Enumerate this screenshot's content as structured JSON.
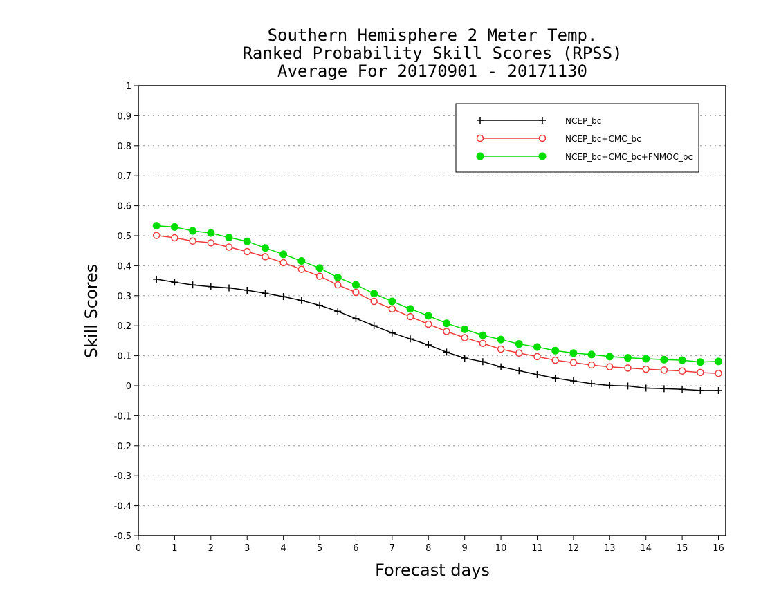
{
  "chart_data": {
    "type": "line",
    "title_lines": [
      "Southern Hemisphere 2 Meter Temp.",
      "Ranked Probability Skill Scores (RPSS)",
      "Average For 20170901 - 20171130"
    ],
    "xlabel": "Forecast days",
    "ylabel": "Skill Scores",
    "xlim": [
      0,
      16.2
    ],
    "ylim": [
      -0.5,
      1
    ],
    "xticks": [
      "0",
      "1",
      "2",
      "3",
      "4",
      "5",
      "6",
      "7",
      "8",
      "9",
      "10",
      "11",
      "12",
      "13",
      "14",
      "15",
      "16"
    ],
    "yticks": [
      "-0.5",
      "-0.4",
      "-0.3",
      "-0.2",
      "-0.1",
      "0",
      "0.1",
      "0.2",
      "0.3",
      "0.4",
      "0.5",
      "0.6",
      "0.7",
      "0.8",
      "0.9",
      "1"
    ],
    "grid": "horizontal dotted",
    "legend_position": "top-right",
    "x": [
      0.5,
      1,
      1.5,
      2,
      2.5,
      3,
      3.5,
      4,
      4.5,
      5,
      5.5,
      6,
      6.5,
      7,
      7.5,
      8,
      8.5,
      9,
      9.5,
      10,
      10.5,
      11,
      11.5,
      12,
      12.5,
      13,
      13.5,
      14,
      14.5,
      15,
      15.5,
      16
    ],
    "series": [
      {
        "name": "NCEP_bc",
        "color": "#000000",
        "marker": "plus",
        "values": [
          0.355,
          0.345,
          0.336,
          0.33,
          0.326,
          0.318,
          0.308,
          0.297,
          0.284,
          0.268,
          0.248,
          0.224,
          0.2,
          0.176,
          0.156,
          0.136,
          0.112,
          0.092,
          0.08,
          0.063,
          0.05,
          0.037,
          0.025,
          0.016,
          0.007,
          0.001,
          -0.001,
          -0.008,
          -0.01,
          -0.012,
          -0.016,
          -0.016
        ]
      },
      {
        "name": "NCEP_bc+CMC_bc",
        "color": "#ee3b3b",
        "marker": "open-circle",
        "values": [
          0.501,
          0.493,
          0.482,
          0.476,
          0.462,
          0.447,
          0.43,
          0.41,
          0.388,
          0.365,
          0.336,
          0.311,
          0.281,
          0.256,
          0.23,
          0.205,
          0.181,
          0.16,
          0.141,
          0.122,
          0.109,
          0.097,
          0.085,
          0.077,
          0.069,
          0.063,
          0.059,
          0.055,
          0.052,
          0.049,
          0.044,
          0.041
        ]
      },
      {
        "name": "NCEP_bc+CMC_bc+FNMOC_bc",
        "color": "#00dd00",
        "marker": "filled-circle",
        "values": [
          0.533,
          0.529,
          0.516,
          0.509,
          0.494,
          0.481,
          0.459,
          0.438,
          0.416,
          0.392,
          0.361,
          0.336,
          0.307,
          0.281,
          0.256,
          0.233,
          0.208,
          0.188,
          0.168,
          0.154,
          0.139,
          0.129,
          0.117,
          0.109,
          0.104,
          0.097,
          0.093,
          0.09,
          0.087,
          0.085,
          0.079,
          0.081
        ]
      }
    ]
  }
}
